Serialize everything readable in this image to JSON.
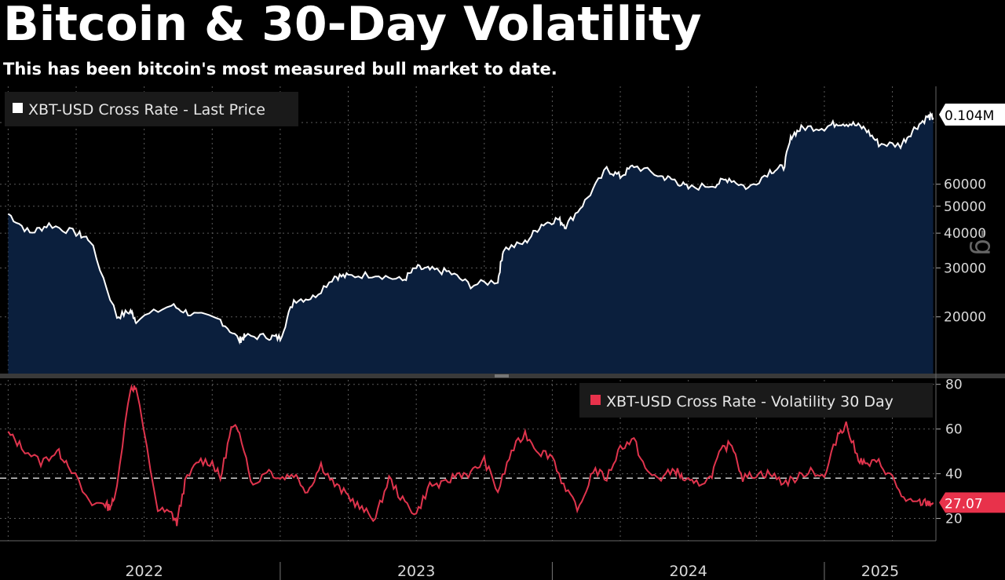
{
  "title": "Bitcoin & 30-Day Volatility",
  "subtitle": "This has been bitcoin's most measured bull market to date.",
  "watermark": "-g",
  "colors": {
    "background": "#000000",
    "price_line": "#ffffff",
    "price_fill": "#0b1f3d",
    "vol_line": "#e0344d",
    "vol_badge": "#e8324b",
    "grid": "#5a5a5a"
  },
  "chart_data": [
    {
      "type": "area",
      "title": "XBT-USD Cross Rate - Last Price",
      "legend": "XBT-USD Cross Rate - Last Price",
      "scale": "log",
      "ylim": [
        12500,
        135000
      ],
      "yticks": [
        20000,
        30000,
        40000,
        50000,
        60000
      ],
      "ytick_labels": [
        "20000",
        "30000",
        "40000",
        "50000",
        "60000"
      ],
      "last_value": 104000,
      "last_label": "0.104M",
      "x": [
        2022.0,
        2022.08,
        2022.15,
        2022.25,
        2022.3,
        2022.4,
        2022.45,
        2022.47,
        2022.6,
        2022.67,
        2022.78,
        2022.85,
        2022.87,
        2022.96,
        2023.0,
        2023.05,
        2023.12,
        2023.2,
        2023.25,
        2023.35,
        2023.45,
        2023.5,
        2023.55,
        2023.62,
        2023.7,
        2023.8,
        2023.82,
        2023.9,
        2023.96,
        2024.02,
        2024.05,
        2024.12,
        2024.2,
        2024.25,
        2024.3,
        2024.4,
        2024.45,
        2024.5,
        2024.6,
        2024.65,
        2024.72,
        2024.8,
        2024.85,
        2024.88,
        2024.92,
        2025.0,
        2025.05,
        2025.1,
        2025.15,
        2025.2,
        2025.28,
        2025.33,
        2025.38,
        2025.4
      ],
      "values": [
        47000,
        40000,
        43000,
        40000,
        38000,
        20000,
        21000,
        19500,
        22000,
        20500,
        19500,
        16500,
        17000,
        17000,
        16800,
        23000,
        23500,
        28000,
        28000,
        28500,
        27000,
        30000,
        29500,
        29000,
        26000,
        27000,
        35000,
        37000,
        43000,
        45000,
        42500,
        52000,
        68000,
        64000,
        70000,
        64000,
        62000,
        58000,
        60000,
        63000,
        58000,
        67000,
        69000,
        90000,
        96000,
        96000,
        100000,
        99000,
        95000,
        84000,
        83000,
        95000,
        105000,
        104000
      ]
    },
    {
      "type": "line",
      "title": "XBT-USD Cross Rate - Volatility 30 Day",
      "legend": "XBT-USD Cross Rate - Volatility 30 Day",
      "ylim": [
        10,
        82
      ],
      "yticks": [
        20,
        40,
        60,
        80
      ],
      "ytick_labels": [
        "20",
        "40",
        "60",
        "80"
      ],
      "reference_line": 38,
      "last_value": 27.07,
      "last_label": "27.07",
      "x": [
        2022.0,
        2022.05,
        2022.12,
        2022.18,
        2022.22,
        2022.3,
        2022.35,
        2022.37,
        2022.39,
        2022.45,
        2022.47,
        2022.55,
        2022.6,
        2022.62,
        2022.65,
        2022.7,
        2022.75,
        2022.78,
        2022.82,
        2022.85,
        2022.9,
        2022.95,
        2023.0,
        2023.05,
        2023.1,
        2023.15,
        2023.2,
        2023.25,
        2023.3,
        2023.35,
        2023.4,
        2023.45,
        2023.5,
        2023.55,
        2023.6,
        2023.65,
        2023.7,
        2023.75,
        2023.8,
        2023.85,
        2023.9,
        2023.95,
        2024.0,
        2024.05,
        2024.1,
        2024.15,
        2024.2,
        2024.25,
        2024.3,
        2024.35,
        2024.4,
        2024.45,
        2024.48,
        2024.52,
        2024.58,
        2024.62,
        2024.66,
        2024.7,
        2024.75,
        2024.8,
        2024.85,
        2024.9,
        2024.95,
        2025.0,
        2025.05,
        2025.08,
        2025.12,
        2025.15,
        2025.2,
        2025.25,
        2025.3,
        2025.35,
        2025.38,
        2025.4
      ],
      "values": [
        58,
        52,
        45,
        50,
        45,
        26,
        27,
        25,
        28,
        79,
        78,
        24,
        22,
        18,
        36,
        46,
        45,
        38,
        60,
        60,
        34,
        42,
        38,
        40,
        32,
        44,
        35,
        30,
        24,
        20,
        38,
        28,
        22,
        35,
        35,
        40,
        40,
        46,
        32,
        50,
        58,
        50,
        48,
        32,
        24,
        42,
        38,
        52,
        55,
        40,
        38,
        42,
        38,
        35,
        38,
        50,
        54,
        38,
        40,
        40,
        36,
        38,
        42,
        38,
        58,
        62,
        48,
        44,
        45,
        38,
        27.07,
        27,
        27,
        27.07
      ]
    }
  ],
  "x_axis": {
    "range": [
      2021.97,
      2025.41
    ],
    "year_ticks": [
      2022,
      2023,
      2024,
      2025
    ],
    "year_labels": [
      "2022",
      "2023",
      "2024",
      "2025"
    ]
  }
}
